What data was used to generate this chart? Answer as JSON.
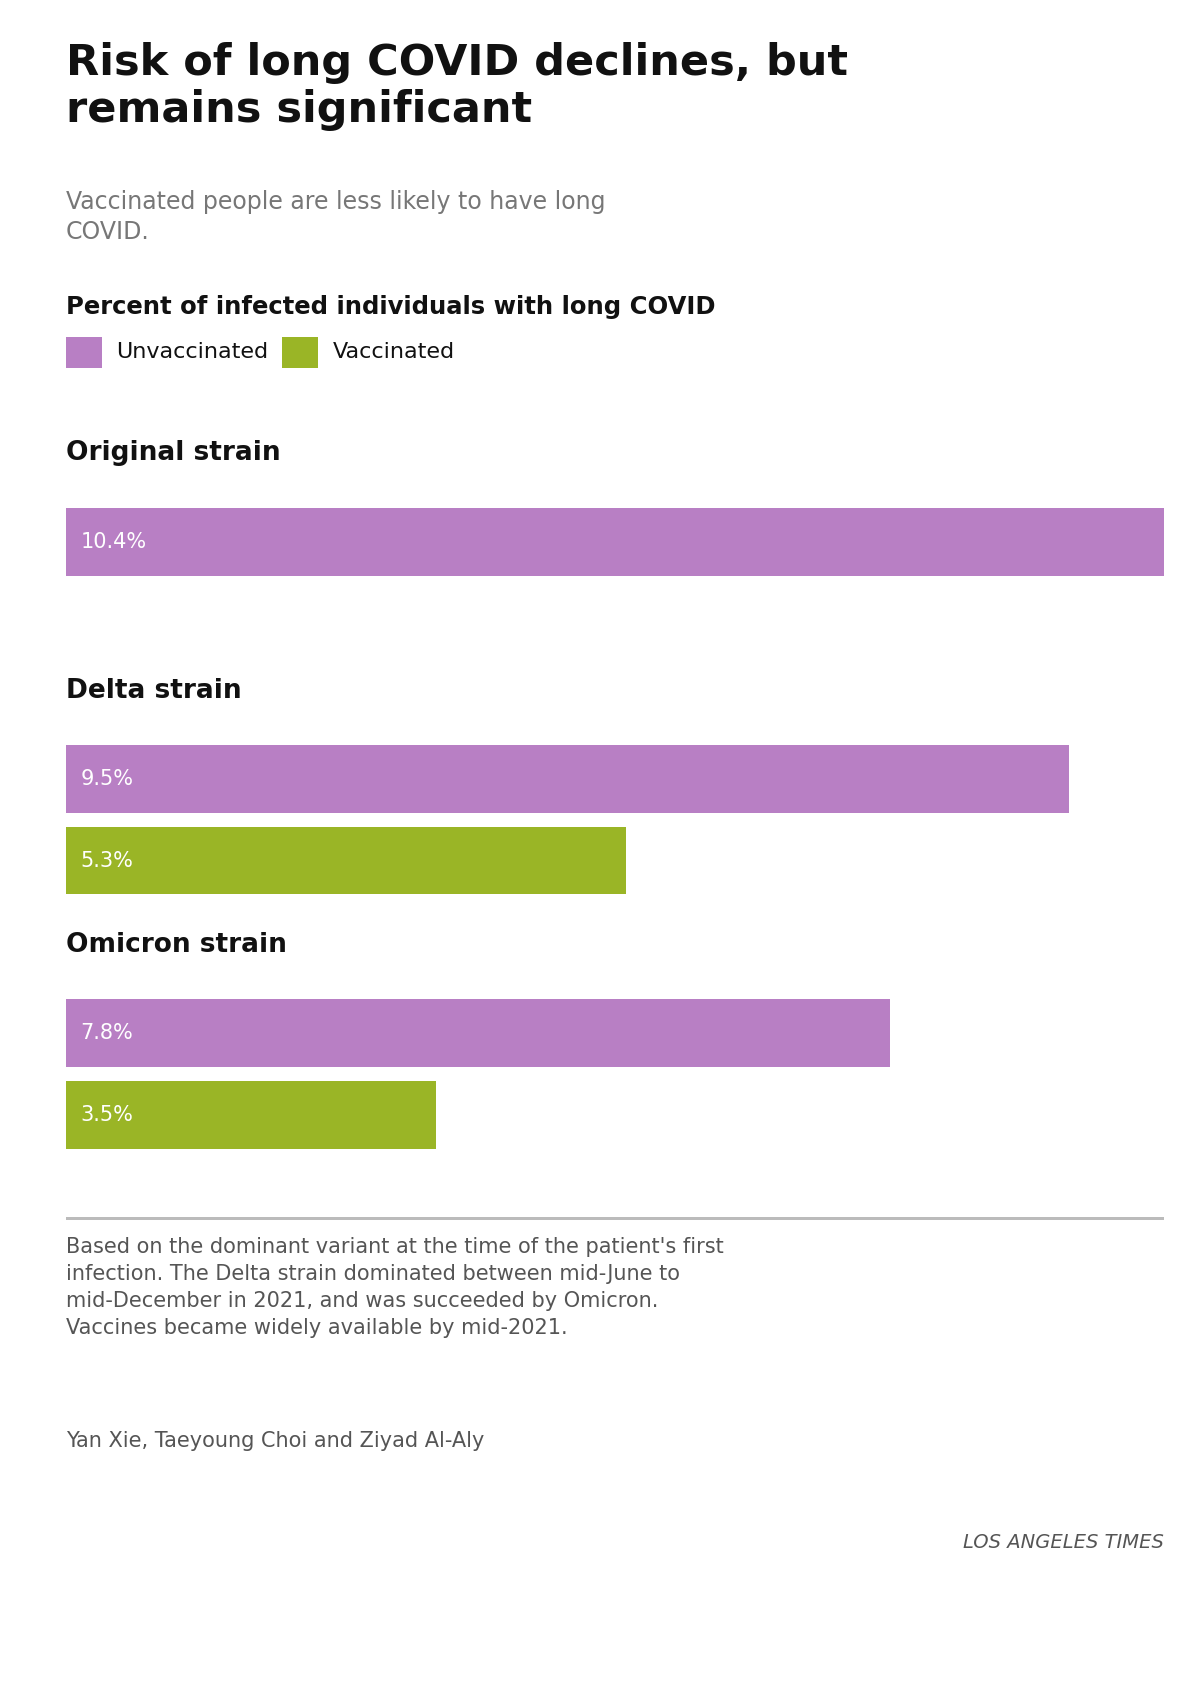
{
  "title": "Risk of long COVID declines, but\nremains significant",
  "subtitle": "Vaccinated people are less likely to have long\nCOVID.",
  "section_label": "Percent of infected individuals with long COVID",
  "legend": [
    {
      "label": "Unvaccinated",
      "color": "#b87fc4"
    },
    {
      "label": "Vaccinated",
      "color": "#9ab526"
    }
  ],
  "groups": [
    {
      "name": "Original strain",
      "bars": [
        {
          "label": "10.4%",
          "value": 10.4,
          "color": "#b87fc4"
        },
        {
          "label": null,
          "value": null,
          "color": null
        }
      ]
    },
    {
      "name": "Delta strain",
      "bars": [
        {
          "label": "9.5%",
          "value": 9.5,
          "color": "#b87fc4"
        },
        {
          "label": "5.3%",
          "value": 5.3,
          "color": "#9ab526"
        }
      ]
    },
    {
      "name": "Omicron strain",
      "bars": [
        {
          "label": "7.8%",
          "value": 7.8,
          "color": "#b87fc4"
        },
        {
          "label": "3.5%",
          "value": 3.5,
          "color": "#9ab526"
        }
      ]
    }
  ],
  "max_value": 10.4,
  "footnote": "Based on the dominant variant at the time of the patient's first\ninfection. The Delta strain dominated between mid-June to\nmid-December in 2021, and was succeeded by Omicron.\nVaccines became widely available by mid-2021.",
  "author": "Yan Xie, Taeyoung Choi and Ziyad Al-Aly",
  "source": "LOS ANGELES TIMES",
  "bg_color": "#ffffff",
  "title_color": "#111111",
  "subtitle_color": "#777777",
  "section_label_color": "#111111",
  "bar_label_color": "#ffffff",
  "group_name_color": "#111111",
  "footnote_color": "#555555"
}
